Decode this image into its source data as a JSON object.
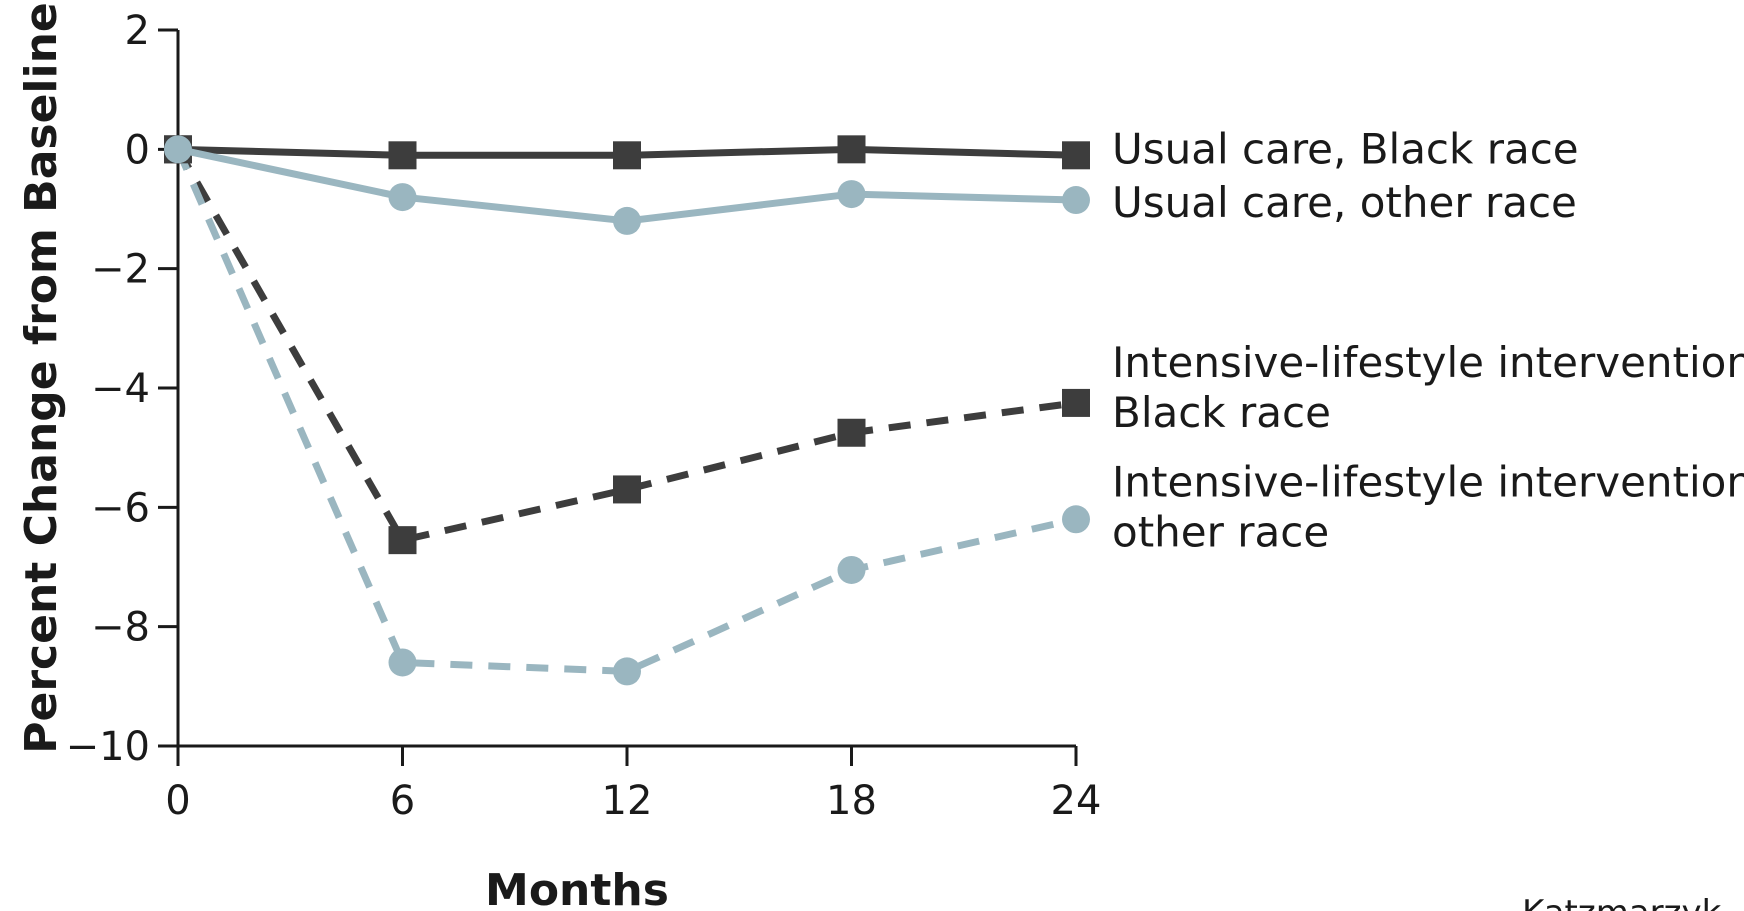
{
  "chart_data": {
    "type": "line",
    "xlabel": "Months",
    "ylabel": "Percent Change from Baseline",
    "x": [
      0,
      6,
      12,
      18,
      24
    ],
    "x_tick_labels": [
      "0",
      "6",
      "12",
      "18",
      "24"
    ],
    "y_ticks": [
      2,
      0,
      -2,
      -4,
      -6,
      -8,
      -10
    ],
    "y_tick_labels": [
      "2",
      "0",
      "−2",
      "−4",
      "−6",
      "−8",
      "−10"
    ],
    "xlim": [
      0,
      24
    ],
    "ylim": [
      -10,
      2
    ],
    "grid": false,
    "legend": "right, inline labels at line ends",
    "series": [
      {
        "name": "Usual care, Black race",
        "label_lines": [
          "Usual care, Black race"
        ],
        "values": [
          0,
          -0.1,
          -0.1,
          0.0,
          -0.1
        ],
        "color": "#3d3d3d",
        "style": "solid",
        "marker": "square"
      },
      {
        "name": "Usual care, other race",
        "label_lines": [
          "Usual care, other race"
        ],
        "values": [
          0,
          -0.8,
          -1.2,
          -0.75,
          -0.85
        ],
        "color": "#9ab6c0",
        "style": "solid",
        "marker": "circle"
      },
      {
        "name": "Intensive-lifestyle intervention, Black race",
        "label_lines": [
          "Intensive-lifestyle intervention,",
          "Black race"
        ],
        "values": [
          0,
          -6.55,
          -5.7,
          -4.75,
          -4.25
        ],
        "color": "#3d3d3d",
        "style": "dashed",
        "marker": "square"
      },
      {
        "name": "Intensive-lifestyle intervention, other race",
        "label_lines": [
          "Intensive-lifestyle intervention,",
          "other race"
        ],
        "values": [
          0,
          -8.6,
          -8.75,
          -7.05,
          -6.2
        ],
        "color": "#9ab6c0",
        "style": "dashed",
        "marker": "circle"
      }
    ]
  },
  "credit": "Katzmarzyk"
}
